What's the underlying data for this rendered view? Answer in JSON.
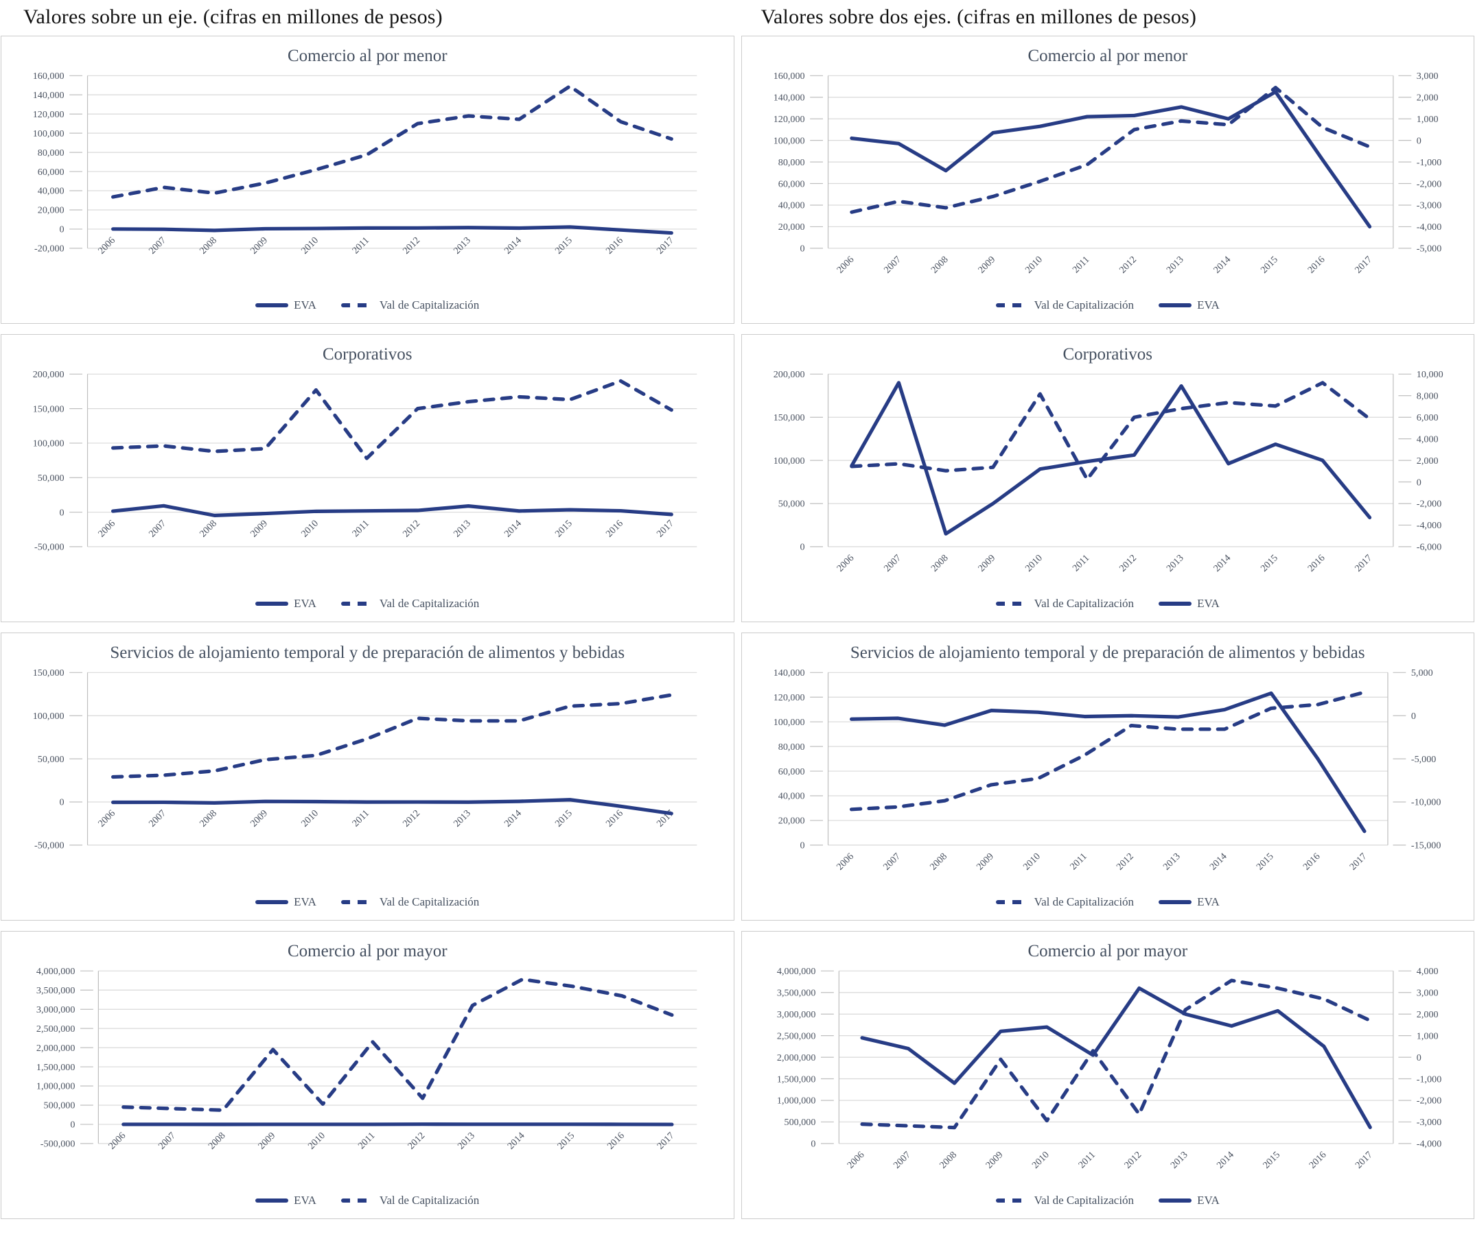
{
  "page": {
    "left_header": "Valores sobre un eje. (cifras en millones de pesos)",
    "right_header": "Valores sobre dos ejes. (cifras en millones de pesos)"
  },
  "colors": {
    "series": "#273c85",
    "grid": "#d9d9d9",
    "axis": "#bfbfbf",
    "tick_text": "#4a5260",
    "title_text": "#455060",
    "header_text": "#121212",
    "panel_border": "#cbcbcb",
    "background": "#ffffff"
  },
  "legend_labels": {
    "eva": "EVA",
    "valcap": "Val de Capitalización"
  },
  "years": [
    "2006",
    "2007",
    "2008",
    "2009",
    "2010",
    "2011",
    "2012",
    "2013",
    "2014",
    "2015",
    "2016",
    "2017"
  ],
  "chart_data": [
    {
      "id": "comercio-menor-un-eje",
      "type": "line",
      "title": "Comercio al por menor",
      "axes": {
        "left": {
          "min": -20000,
          "max": 160000,
          "step": 20000
        },
        "right": null
      },
      "series": [
        {
          "key": "eva",
          "name": "EVA",
          "style": "solid",
          "axis": "left",
          "values": [
            100,
            -150,
            -1400,
            350,
            650,
            1100,
            1150,
            1550,
            1000,
            2250,
            -900,
            -4000
          ]
        },
        {
          "key": "valcap",
          "name": "Val de Capitalización",
          "style": "dashed",
          "axis": "left",
          "values": [
            33500,
            43500,
            37500,
            48000,
            62000,
            77500,
            110000,
            118000,
            114500,
            149000,
            112000,
            94000
          ]
        }
      ],
      "legend_order": [
        "eva",
        "valcap"
      ]
    },
    {
      "id": "comercio-menor-dos-ejes",
      "type": "line",
      "title": "Comercio al por menor",
      "axes": {
        "left": {
          "min": 0,
          "max": 160000,
          "step": 20000
        },
        "right": {
          "min": -5000,
          "max": 3000,
          "step": 1000
        }
      },
      "series": [
        {
          "key": "eva",
          "name": "EVA",
          "style": "solid",
          "axis": "right",
          "values": [
            100,
            -150,
            -1400,
            350,
            650,
            1100,
            1150,
            1550,
            1000,
            2250,
            -900,
            -4000
          ]
        },
        {
          "key": "valcap",
          "name": "Val de Capitalización",
          "style": "dashed",
          "axis": "left",
          "values": [
            33500,
            43500,
            37500,
            48000,
            62000,
            77500,
            110000,
            118000,
            114500,
            149000,
            112000,
            94000
          ]
        }
      ],
      "legend_order": [
        "valcap",
        "eva"
      ]
    },
    {
      "id": "corporativos-un-eje",
      "type": "line",
      "title": "Corporativos",
      "axes": {
        "left": {
          "min": -50000,
          "max": 200000,
          "step": 50000
        },
        "right": null
      },
      "series": [
        {
          "key": "eva",
          "name": "EVA",
          "style": "solid",
          "axis": "left",
          "values": [
            1500,
            9200,
            -4800,
            -2000,
            1200,
            1900,
            2500,
            8900,
            1700,
            3500,
            2000,
            -3300
          ]
        },
        {
          "key": "valcap",
          "name": "Val de Capitalización",
          "style": "dashed",
          "axis": "left",
          "values": [
            93000,
            96000,
            88000,
            92000,
            177000,
            78000,
            150000,
            160000,
            167000,
            163000,
            190000,
            148000
          ]
        }
      ],
      "legend_order": [
        "eva",
        "valcap"
      ]
    },
    {
      "id": "corporativos-dos-ejes",
      "type": "line",
      "title": "Corporativos",
      "axes": {
        "left": {
          "min": 0,
          "max": 200000,
          "step": 50000
        },
        "right": {
          "min": -6000,
          "max": 10000,
          "step": 2000
        }
      },
      "series": [
        {
          "key": "eva",
          "name": "EVA",
          "style": "solid",
          "axis": "right",
          "values": [
            1500,
            9200,
            -4800,
            -2000,
            1200,
            1900,
            2500,
            8900,
            1700,
            3500,
            2000,
            -3300
          ]
        },
        {
          "key": "valcap",
          "name": "Val de Capitalización",
          "style": "dashed",
          "axis": "left",
          "values": [
            93000,
            96000,
            88000,
            92000,
            177000,
            78000,
            150000,
            160000,
            167000,
            163000,
            190000,
            148000
          ]
        }
      ],
      "legend_order": [
        "valcap",
        "eva"
      ]
    },
    {
      "id": "servicios-alojamiento-un-eje",
      "type": "line",
      "title": "Servicios de alojamiento temporal y de preparación de alimentos y bebidas",
      "axes": {
        "left": {
          "min": -50000,
          "max": 150000,
          "step": 50000
        },
        "right": null
      },
      "series": [
        {
          "key": "eva",
          "name": "EVA",
          "style": "solid",
          "axis": "left",
          "values": [
            -400,
            -300,
            -1100,
            600,
            400,
            -100,
            0,
            -150,
            700,
            2600,
            -5000,
            -13400
          ]
        },
        {
          "key": "valcap",
          "name": "Val de Capitalización",
          "style": "dashed",
          "axis": "left",
          "values": [
            29000,
            31000,
            36000,
            49000,
            54000,
            73000,
            97000,
            94000,
            94000,
            111000,
            114000,
            124000
          ]
        }
      ],
      "legend_order": [
        "eva",
        "valcap"
      ]
    },
    {
      "id": "servicios-alojamiento-dos-ejes",
      "type": "line",
      "title": "Servicios de alojamiento temporal y de preparación de alimentos y bebidas",
      "axes": {
        "left": {
          "min": 0,
          "max": 140000,
          "step": 20000
        },
        "right": {
          "min": -15000,
          "max": 5000,
          "step": 5000
        }
      },
      "series": [
        {
          "key": "eva",
          "name": "EVA",
          "style": "solid",
          "axis": "right",
          "values": [
            -400,
            -300,
            -1100,
            600,
            400,
            -100,
            0,
            -150,
            700,
            2600,
            -5000,
            -13400
          ]
        },
        {
          "key": "valcap",
          "name": "Val de Capitalización",
          "style": "dashed",
          "axis": "left",
          "values": [
            29000,
            31000,
            36000,
            49000,
            54000,
            73000,
            97000,
            94000,
            94000,
            111000,
            114000,
            124000
          ]
        }
      ],
      "legend_order": [
        "valcap",
        "eva"
      ]
    },
    {
      "id": "comercio-mayor-un-eje",
      "type": "line",
      "title": "Comercio al por mayor",
      "axes": {
        "left": {
          "min": -500000,
          "max": 4000000,
          "step": 500000
        },
        "right": null
      },
      "series": [
        {
          "key": "eva",
          "name": "EVA",
          "style": "solid",
          "axis": "left",
          "values": [
            900,
            400,
            -1200,
            1200,
            1400,
            100,
            3200,
            2000,
            1450,
            2150,
            500,
            -3250
          ]
        },
        {
          "key": "valcap",
          "name": "Val de Capitalización",
          "style": "dashed",
          "axis": "left",
          "values": [
            450000,
            410000,
            370000,
            1950000,
            530000,
            2150000,
            680000,
            3100000,
            3780000,
            3600000,
            3350000,
            2850000
          ]
        }
      ],
      "legend_order": [
        "eva",
        "valcap"
      ]
    },
    {
      "id": "comercio-mayor-dos-ejes",
      "type": "line",
      "title": "Comercio al por mayor",
      "axes": {
        "left": {
          "min": 0,
          "max": 4000000,
          "step": 500000
        },
        "right": {
          "min": -4000,
          "max": 4000,
          "step": 1000
        }
      },
      "series": [
        {
          "key": "eva",
          "name": "EVA",
          "style": "solid",
          "axis": "right",
          "values": [
            900,
            400,
            -1200,
            1200,
            1400,
            100,
            3200,
            2000,
            1450,
            2150,
            500,
            -3250
          ]
        },
        {
          "key": "valcap",
          "name": "Val de Capitalización",
          "style": "dashed",
          "axis": "left",
          "values": [
            450000,
            410000,
            370000,
            1950000,
            530000,
            2150000,
            680000,
            3100000,
            3780000,
            3600000,
            3350000,
            2850000
          ]
        }
      ],
      "legend_order": [
        "valcap",
        "eva"
      ]
    }
  ]
}
